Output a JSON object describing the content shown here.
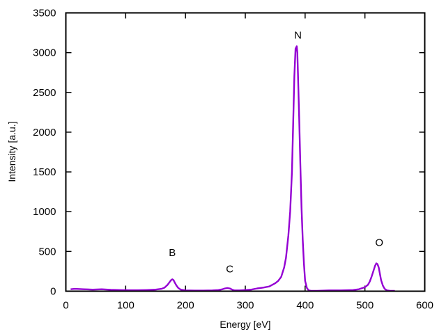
{
  "chart_data": {
    "type": "line",
    "title": "",
    "xlabel": "Energy [eV]",
    "ylabel": "Intensity [a.u.]",
    "xlim": [
      0,
      600
    ],
    "ylim": [
      0,
      3500
    ],
    "x_ticks": [
      0,
      100,
      200,
      300,
      400,
      500,
      600
    ],
    "y_ticks": [
      0,
      500,
      1000,
      1500,
      2000,
      2500,
      3000,
      3500
    ],
    "grid": false,
    "legend": "none",
    "series": [
      {
        "color": "#9400d3",
        "x": [
          8,
          15,
          30,
          45,
          60,
          75,
          90,
          105,
          120,
          135,
          150,
          160,
          165,
          170,
          173,
          176,
          178,
          180,
          182,
          185,
          188,
          192,
          200,
          215,
          230,
          245,
          255,
          262,
          266,
          270,
          274,
          278,
          282,
          290,
          300,
          310,
          320,
          330,
          340,
          350,
          355,
          360,
          365,
          368,
          372,
          375,
          378,
          380,
          382,
          384,
          386,
          387,
          388,
          390,
          392,
          394,
          396,
          398,
          400,
          403,
          406,
          410,
          420,
          440,
          460,
          480,
          490,
          500,
          505,
          508,
          511,
          514,
          517,
          519,
          521,
          523,
          525,
          527,
          530,
          533,
          537,
          542,
          550
        ],
        "y": [
          25,
          30,
          25,
          20,
          25,
          18,
          15,
          12,
          12,
          15,
          20,
          30,
          45,
          80,
          110,
          140,
          150,
          140,
          110,
          70,
          40,
          20,
          10,
          8,
          8,
          10,
          15,
          25,
          35,
          40,
          35,
          20,
          10,
          10,
          15,
          20,
          35,
          45,
          60,
          100,
          130,
          180,
          300,
          420,
          700,
          1000,
          1500,
          2100,
          2700,
          3050,
          3080,
          3000,
          2750,
          2200,
          1600,
          1050,
          650,
          350,
          130,
          40,
          10,
          5,
          5,
          10,
          10,
          15,
          25,
          50,
          80,
          120,
          180,
          250,
          320,
          350,
          340,
          300,
          220,
          140,
          70,
          30,
          10,
          5,
          5
        ]
      }
    ],
    "annotations": [
      {
        "text": "B",
        "x": 178,
        "y": 440
      },
      {
        "text": "C",
        "x": 274,
        "y": 235
      },
      {
        "text": "N",
        "x": 388,
        "y": 3175
      },
      {
        "text": "O",
        "x": 524,
        "y": 570
      }
    ]
  }
}
